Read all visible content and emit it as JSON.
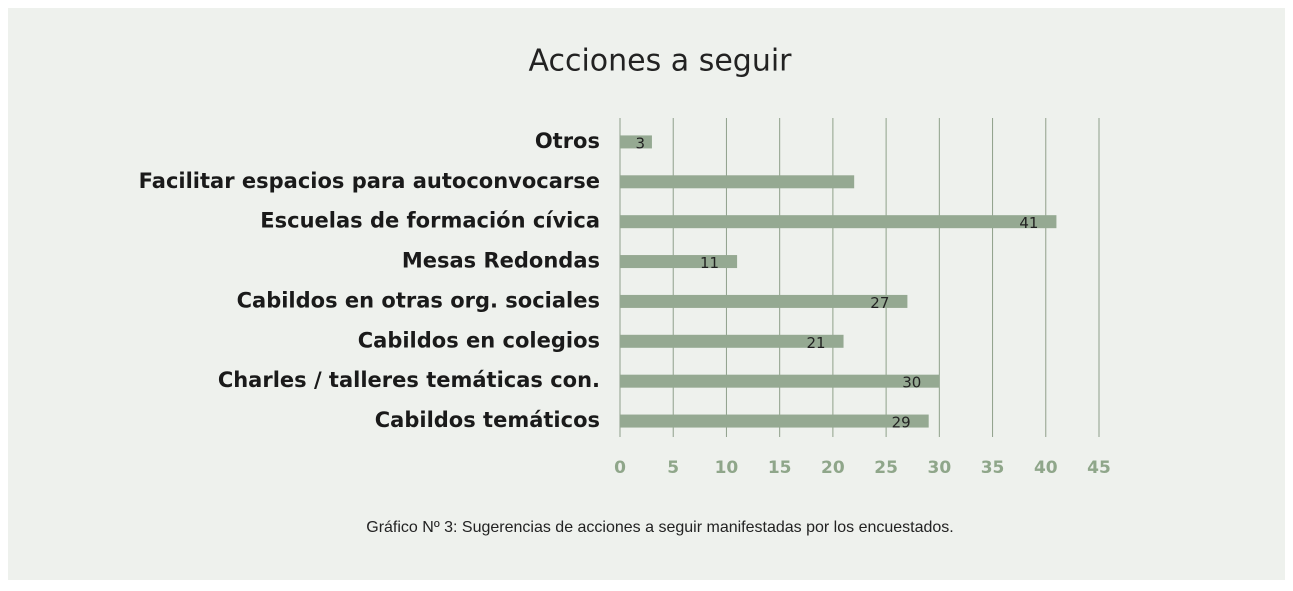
{
  "chart_data": {
    "type": "hbar",
    "title": "Acciones a seguir",
    "categories": [
      "Otros",
      "Facilitar espacios para autoconvocarse",
      "Escuelas de formación cívica",
      "Mesas Redondas",
      "Cabildos en otras org. sociales",
      "Cabildos en colegios",
      "Charles / talleres temáticas con.",
      "Cabildos temáticos"
    ],
    "values": [
      3,
      22,
      41,
      11,
      27,
      21,
      30,
      29
    ],
    "value_labels": [
      3,
      null,
      41,
      11,
      27,
      21,
      30,
      29
    ],
    "color": "#95a992",
    "xlim": [
      0,
      45
    ],
    "xticks": [
      0,
      5,
      10,
      15,
      20,
      25,
      30,
      35,
      40,
      45
    ],
    "grid": true,
    "caption": "Gráfico Nº 3: Sugerencias de acciones a seguir manifestadas por los encuestados."
  }
}
